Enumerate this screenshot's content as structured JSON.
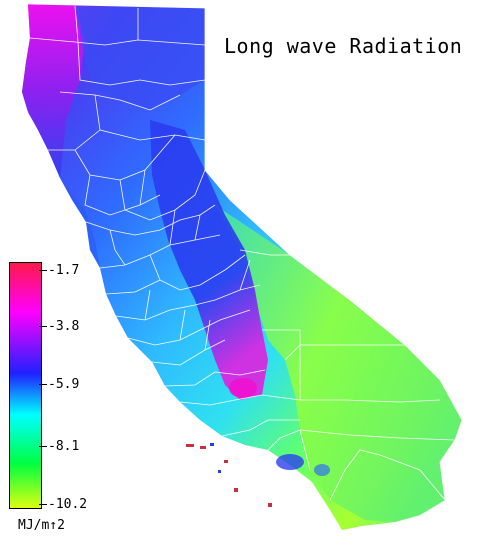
{
  "title": "Long wave Radiation",
  "legend": {
    "unit": "MJ/m↑2",
    "ticks": [
      "-1.7",
      "-3.8",
      "-5.9",
      "-8.1",
      "-10.2"
    ],
    "colors": [
      "#ff1a4a",
      "#ff00ff",
      "#2020ff",
      "#00ffff",
      "#00ff40",
      "#ddff10"
    ]
  },
  "map": {
    "region": "California",
    "palette": {
      "north_coast": "#e010f0",
      "mountains": "#3030f0",
      "valley": "#30a8ff",
      "coast_south": "#28d8ff",
      "desert": "#70ff60",
      "desert_high": "#c8ff20",
      "sierra_peak": "#f010d0",
      "border": "#ffffff"
    }
  }
}
